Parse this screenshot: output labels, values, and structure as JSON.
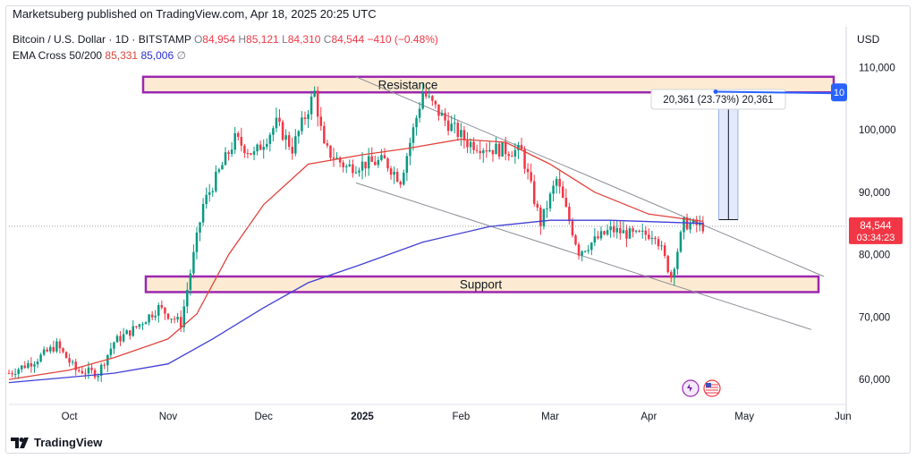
{
  "header": {
    "published": "Marketsuberg published on TradingView.com, Apr 18, 2025 20:25 UTC"
  },
  "legend": {
    "symbol": "Bitcoin / U.S. Dollar · 1D · BITSTAMP",
    "o_label": "O",
    "o_value": "84,954",
    "h_label": "H",
    "h_value": "85,121",
    "l_label": "L",
    "l_value": "84,310",
    "c_label": "C",
    "c_value": "84,544",
    "change": "−410 (−0.48%)",
    "ema_name": "EMA Cross 50/200",
    "ema_fast": "85,331",
    "ema_slow": "85,006",
    "ema_extra": "∅"
  },
  "currency": "USD",
  "footer": {
    "brand": "TradingView"
  },
  "annotations": {
    "resistance": "Resistance",
    "support": "Support",
    "measure": "20,361 (23.73%) 20,361",
    "price_tag": "84,544",
    "countdown": "03:34:23",
    "blue_tag": "10"
  },
  "colors": {
    "up": "#089981",
    "down": "#f23645",
    "ema50": "#e0433a",
    "ema200": "#3f3fd6",
    "zone_fill": "#fcebd2",
    "zone_border": "#9c27b0",
    "measure_fill": "#dce6fb"
  },
  "chart_data": {
    "type": "line",
    "title": "",
    "xlabel": "",
    "ylabel": "",
    "yticks": [
      "60,000",
      "70,000",
      "80,000",
      "90,000",
      "100,000",
      "110,000"
    ],
    "ylim": [
      56000,
      116500
    ],
    "xticks": [
      {
        "label": "Oct",
        "x": "2024-10-01"
      },
      {
        "label": "Nov",
        "x": "2024-11-01"
      },
      {
        "label": "Dec",
        "x": "2024-12-01"
      },
      {
        "label": "2025",
        "x": "2025-01-01",
        "bold": true
      },
      {
        "label": "Feb",
        "x": "2025-02-01"
      },
      {
        "label": "Mar",
        "x": "2025-03-01"
      },
      {
        "label": "Apr",
        "x": "2025-04-01"
      },
      {
        "label": "May",
        "x": "2025-05-01"
      },
      {
        "label": "Jun",
        "x": "2025-06-01"
      }
    ],
    "xlim": [
      "2024-09-12",
      "2025-06-02"
    ],
    "series": [
      {
        "name": "Close",
        "x": [
          "2024-09-12",
          "2024-09-20",
          "2024-09-27",
          "2024-10-03",
          "2024-10-10",
          "2024-10-15",
          "2024-10-21",
          "2024-10-29",
          "2024-11-05",
          "2024-11-12",
          "2024-11-22",
          "2024-11-28",
          "2024-12-05",
          "2024-12-10",
          "2024-12-17",
          "2024-12-20",
          "2024-12-27",
          "2025-01-01",
          "2025-01-08",
          "2025-01-13",
          "2025-01-20",
          "2025-01-27",
          "2025-02-03",
          "2025-02-10",
          "2025-02-20",
          "2025-02-26",
          "2025-03-03",
          "2025-03-10",
          "2025-03-20",
          "2025-03-28",
          "2025-04-03",
          "2025-04-08",
          "2025-04-12",
          "2025-04-18"
        ],
        "values": [
          61000,
          63000,
          65500,
          61500,
          61000,
          66000,
          68000,
          71500,
          69000,
          88000,
          98500,
          96000,
          101000,
          97000,
          106000,
          97000,
          94000,
          94500,
          95000,
          92000,
          106000,
          101500,
          98000,
          97000,
          96500,
          85000,
          92000,
          80500,
          84000,
          83000,
          83500,
          76500,
          85000,
          84544
        ]
      },
      {
        "name": "EMA 50",
        "x": [
          "2024-09-12",
          "2024-10-01",
          "2024-10-15",
          "2024-11-01",
          "2024-11-10",
          "2024-11-20",
          "2024-12-01",
          "2024-12-15",
          "2025-01-01",
          "2025-01-15",
          "2025-02-01",
          "2025-02-15",
          "2025-03-01",
          "2025-03-15",
          "2025-04-01",
          "2025-04-18"
        ],
        "values": [
          60000,
          61500,
          63500,
          66500,
          70500,
          80000,
          88000,
          94500,
          96000,
          97000,
          98500,
          98000,
          94500,
          90000,
          86500,
          85331
        ]
      },
      {
        "name": "EMA 200",
        "x": [
          "2024-09-12",
          "2024-10-15",
          "2024-11-01",
          "2024-11-15",
          "2024-12-01",
          "2024-12-15",
          "2025-01-01",
          "2025-01-20",
          "2025-02-10",
          "2025-03-01",
          "2025-03-20",
          "2025-04-18"
        ],
        "values": [
          59500,
          61000,
          62500,
          66500,
          71500,
          75500,
          78500,
          82000,
          84500,
          85500,
          85500,
          85006
        ]
      }
    ],
    "levels": {
      "resistance": [
        106000,
        108500
      ],
      "support": [
        74000,
        76500
      ]
    },
    "trendlines": [
      {
        "name": "upper",
        "from": [
          "2024-12-30",
          108500
        ],
        "to": [
          "2025-05-26",
          76500
        ]
      },
      {
        "name": "lower",
        "from": [
          "2024-12-30",
          91500
        ],
        "to": [
          "2025-05-22",
          68000
        ]
      }
    ],
    "measure": {
      "from_x": "2025-04-23",
      "to_x": "2025-04-29",
      "from_y": 85600,
      "to_y": 106100
    }
  }
}
